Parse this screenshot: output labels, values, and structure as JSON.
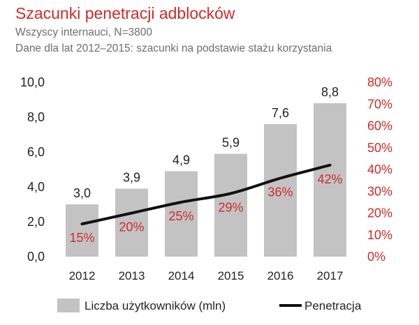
{
  "header": {
    "title": "Szacunki penetracji adblocków",
    "subtitle1": "Wszyscy internauci, N=3800",
    "subtitle2": "Dane dla lat 2012–2015: szacunki na podstawie stażu korzystania"
  },
  "chart_data": {
    "type": "bar",
    "title": "Szacunki penetracji adblocków",
    "categories": [
      "2012",
      "2013",
      "2014",
      "2015",
      "2016",
      "2017"
    ],
    "series": [
      {
        "name": "Liczba użytkowników (mln)",
        "type": "bar",
        "axis": "left",
        "values": [
          3.0,
          3.9,
          4.9,
          5.9,
          7.6,
          8.8
        ],
        "labels": [
          "3,0",
          "3,9",
          "4,9",
          "5,9",
          "7,6",
          "8,8"
        ]
      },
      {
        "name": "Penetracja",
        "type": "line",
        "axis": "right",
        "values": [
          15,
          20,
          25,
          29,
          36,
          42
        ],
        "labels": [
          "15%",
          "20%",
          "25%",
          "29%",
          "36%",
          "42%"
        ]
      }
    ],
    "left_axis": {
      "ylim": [
        0,
        10
      ],
      "ticks": [
        "0,0",
        "2,0",
        "4,0",
        "6,0",
        "8,0",
        "10,0"
      ]
    },
    "right_axis": {
      "ylim": [
        0,
        80
      ],
      "ticks": [
        "0%",
        "10%",
        "20%",
        "30%",
        "40%",
        "50%",
        "60%",
        "70%",
        "80%"
      ]
    },
    "legend": {
      "position": "bottom",
      "bar_label": "Liczba użytkowników (mln)",
      "line_label": "Penetracja"
    },
    "colors": {
      "bar": "#c3c3c3",
      "line": "#111111",
      "accent": "#d22a2a"
    }
  }
}
